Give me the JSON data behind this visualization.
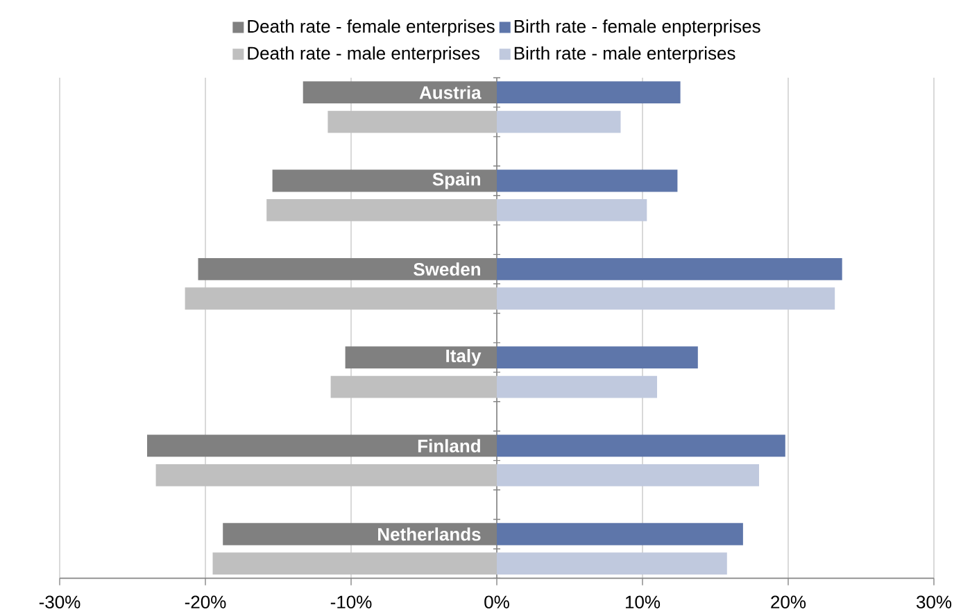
{
  "chart_data": {
    "type": "bar",
    "orientation": "horizontal",
    "stacked": true,
    "categories": [
      "Austria",
      null,
      null,
      "Spain",
      null,
      null,
      "Sweden",
      null,
      null,
      "Italy",
      null,
      null,
      "Finland",
      null,
      null,
      "Netherlands",
      null
    ],
    "series": [
      {
        "name": "Death rate - female enterprises",
        "color": "#808080",
        "values": [
          -13.3,
          null,
          null,
          -15.4,
          null,
          null,
          -20.5,
          null,
          null,
          -10.4,
          null,
          null,
          -24.0,
          null,
          null,
          -18.8,
          null
        ]
      },
      {
        "name": "Birth rate - female enpterprises",
        "color": "#5e76aa",
        "values": [
          12.6,
          null,
          null,
          12.4,
          null,
          null,
          23.7,
          null,
          null,
          13.8,
          null,
          null,
          19.8,
          null,
          null,
          16.9,
          null
        ]
      },
      {
        "name": "Death rate - male enterprises",
        "color": "#bfbfbf",
        "values": [
          null,
          -11.6,
          null,
          null,
          -15.8,
          null,
          null,
          -21.4,
          null,
          null,
          -11.4,
          null,
          null,
          -23.4,
          null,
          null,
          -19.5
        ]
      },
      {
        "name": "Birth rate - male enterprises",
        "color": "#c0c9de",
        "values": [
          null,
          8.5,
          null,
          null,
          10.3,
          null,
          null,
          23.2,
          null,
          null,
          11.0,
          null,
          null,
          18.0,
          null,
          null,
          15.8
        ]
      }
    ],
    "xlim": [
      -30,
      30
    ],
    "xticks": [
      {
        "value": -30,
        "label": "-30%"
      },
      {
        "value": -20,
        "label": "-20%"
      },
      {
        "value": -10,
        "label": "-10%"
      },
      {
        "value": 0,
        "label": "0%"
      },
      {
        "value": 10,
        "label": "10%"
      },
      {
        "value": 20,
        "label": "20%"
      },
      {
        "value": 30,
        "label": "30%"
      }
    ],
    "grid": "x",
    "legend": "top"
  }
}
